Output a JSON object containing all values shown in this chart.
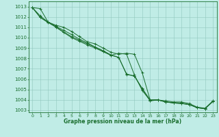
{
  "title": "Graphe pression niveau de la mer (hPa)",
  "bg_color": "#c0ece6",
  "grid_color": "#90c8be",
  "line_color": "#1a6e2e",
  "xlim": [
    -0.5,
    23.5
  ],
  "ylim": [
    1002.8,
    1013.5
  ],
  "yticks": [
    1003,
    1004,
    1005,
    1006,
    1007,
    1008,
    1009,
    1010,
    1011,
    1012,
    1013
  ],
  "xticks": [
    0,
    1,
    2,
    3,
    4,
    5,
    6,
    7,
    8,
    9,
    10,
    11,
    12,
    13,
    14,
    15,
    16,
    17,
    18,
    19,
    20,
    21,
    22,
    23
  ],
  "series": [
    [
      1012.9,
      1012.8,
      1011.5,
      1011.2,
      1011.0,
      1010.6,
      1010.1,
      1009.6,
      1009.4,
      1009.0,
      1008.6,
      1008.4,
      1008.5,
      1008.4,
      1006.6,
      1004.0,
      1004.0,
      1003.9,
      1003.8,
      1003.8,
      1003.65,
      1003.3,
      1003.2,
      1003.9
    ],
    [
      1012.9,
      1012.1,
      1011.5,
      1011.1,
      1010.7,
      1010.3,
      1009.85,
      1009.5,
      1009.1,
      1008.7,
      1008.3,
      1008.1,
      1006.5,
      1006.3,
      1005.1,
      1004.0,
      1004.0,
      1003.8,
      1003.75,
      1003.7,
      1003.55,
      1003.25,
      1003.15,
      1003.85
    ],
    [
      1012.9,
      1011.95,
      1011.45,
      1011.05,
      1010.55,
      1010.1,
      1009.75,
      1009.4,
      1009.1,
      1008.75,
      1008.35,
      1008.1,
      1006.45,
      1006.3,
      1005.05,
      1003.9,
      1004.0,
      1003.8,
      1003.7,
      1003.65,
      1003.55,
      1003.25,
      1003.15,
      1003.9
    ],
    [
      1012.9,
      1011.95,
      1011.5,
      1011.0,
      1010.5,
      1010.0,
      1009.65,
      1009.3,
      1009.0,
      1008.65,
      1008.3,
      1008.5,
      1008.4,
      1006.4,
      1004.9,
      1003.95,
      1004.0,
      1003.8,
      1003.7,
      1003.65,
      1003.55,
      1003.25,
      1003.15,
      1003.85
    ]
  ]
}
